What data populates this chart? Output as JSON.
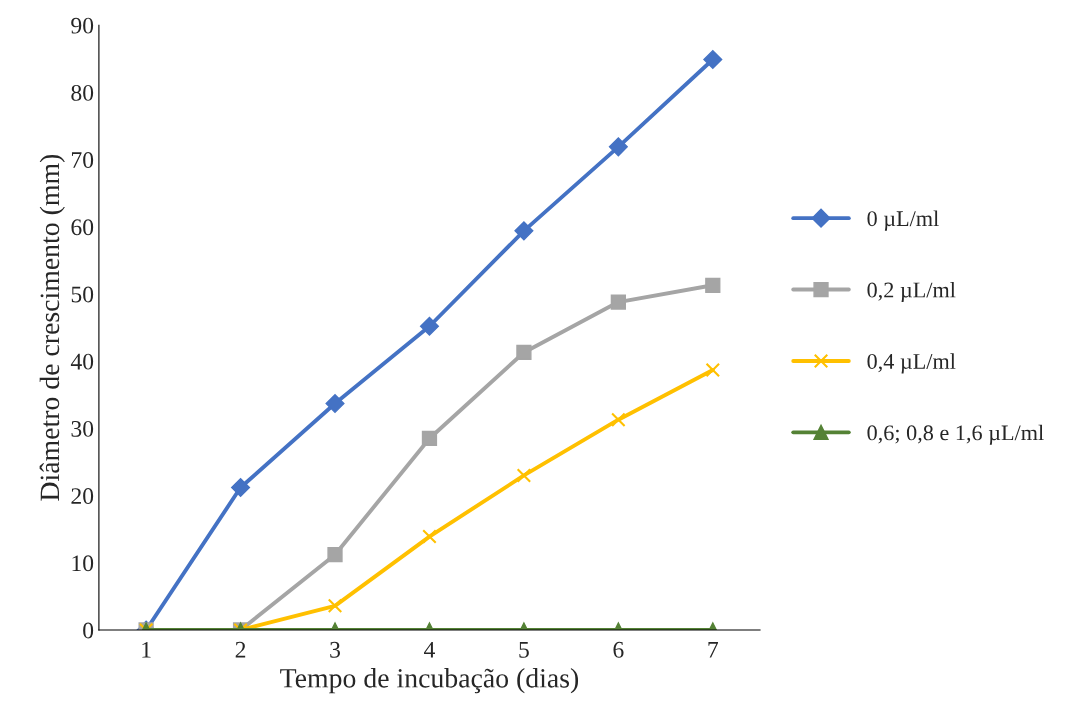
{
  "chart_data": {
    "type": "line",
    "xlabel": "Tempo de incubação (dias)",
    "ylabel": "Diâmetro de crescimento (mm)",
    "categories": [
      "1",
      "2",
      "3",
      "4",
      "5",
      "6",
      "7"
    ],
    "series": [
      {
        "name": "0 µL/ml",
        "color": "#4472c4",
        "marker": "diamond",
        "values": [
          0,
          21.2,
          33.7,
          45.2,
          59.4,
          71.9,
          84.9
        ]
      },
      {
        "name": "0,2 µL/ml",
        "color": "#a5a5a5",
        "marker": "square",
        "values": [
          0,
          0,
          11.2,
          28.5,
          41.3,
          48.8,
          51.3
        ]
      },
      {
        "name": "0,4 µL/ml",
        "color": "#ffc000",
        "marker": "cross",
        "values": [
          0,
          0,
          3.6,
          13.9,
          23.0,
          31.3,
          38.7
        ]
      },
      {
        "name": "0,6; 0,8 e 1,6 µL/ml",
        "color": "#548235",
        "marker": "triangle",
        "values": [
          0,
          0,
          0,
          0,
          0,
          0,
          0
        ]
      }
    ],
    "ylim": [
      0,
      90
    ],
    "yticks": [
      0,
      10,
      20,
      30,
      40,
      50,
      60,
      70,
      80,
      90
    ],
    "grid": false,
    "legend": "right",
    "line_style": "solid"
  }
}
